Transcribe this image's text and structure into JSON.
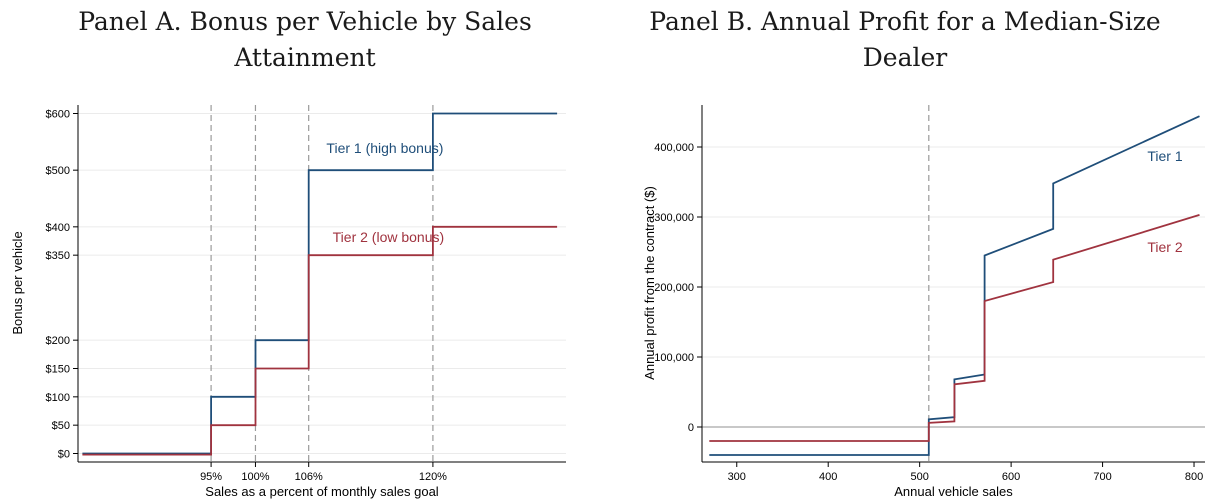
{
  "chart_data": [
    {
      "type": "line",
      "title": "Panel A. Bonus per Vehicle by Sales Attainment",
      "xlabel": "Sales as a percent of monthly sales goal",
      "ylabel": "Bonus per vehicle",
      "xlim": [
        0.8,
        1.35
      ],
      "ylim": [
        -15,
        615
      ],
      "xticks": [
        {
          "value": 0.95,
          "label": "95%"
        },
        {
          "value": 1.0,
          "label": "100%"
        },
        {
          "value": 1.06,
          "label": "106%"
        },
        {
          "value": 1.2,
          "label": "120%"
        }
      ],
      "yticks": [
        {
          "value": 0,
          "label": "$0"
        },
        {
          "value": 50,
          "label": "$50"
        },
        {
          "value": 100,
          "label": "$100"
        },
        {
          "value": 150,
          "label": "$150"
        },
        {
          "value": 200,
          "label": "$200"
        },
        {
          "value": 350,
          "label": "$350"
        },
        {
          "value": 400,
          "label": "$400"
        },
        {
          "value": 500,
          "label": "$500"
        },
        {
          "value": 600,
          "label": "$600"
        }
      ],
      "vlines": [
        0.95,
        1.0,
        1.06,
        1.2
      ],
      "grid": true,
      "series": [
        {
          "name": "Tier 1 (high bonus)",
          "color": "#1f4e79",
          "x": [
            0.805,
            0.95,
            0.95,
            1.0,
            1.0,
            1.06,
            1.06,
            1.2,
            1.2,
            1.34
          ],
          "y": [
            0,
            0,
            100,
            100,
            200,
            200,
            500,
            500,
            600,
            600
          ]
        },
        {
          "name": "Tier 2 (low bonus)",
          "color": "#a0333f",
          "x": [
            0.805,
            0.95,
            0.95,
            1.0,
            1.0,
            1.06,
            1.06,
            1.2,
            1.2,
            1.34
          ],
          "y": [
            -2,
            -2,
            50,
            50,
            150,
            150,
            350,
            350,
            400,
            400
          ]
        }
      ],
      "annotations": [
        {
          "text": "Tier 1 (high bonus)",
          "x": 1.08,
          "y": 530,
          "color": "#1f4e79"
        },
        {
          "text": "Tier 2 (low bonus)",
          "x": 1.087,
          "y": 373,
          "color": "#a0333f"
        }
      ]
    },
    {
      "type": "line",
      "title": "Panel B. Annual Profit for a Median-Size Dealer",
      "xlabel": "Annual vehicle sales",
      "ylabel": "Annual profit from the contract ($)",
      "xlim": [
        262,
        812
      ],
      "ylim": [
        -50000,
        460000
      ],
      "xticks": [
        {
          "value": 300,
          "label": "300"
        },
        {
          "value": 400,
          "label": "400"
        },
        {
          "value": 500,
          "label": "500"
        },
        {
          "value": 600,
          "label": "600"
        },
        {
          "value": 700,
          "label": "700"
        },
        {
          "value": 800,
          "label": "800"
        }
      ],
      "yticks": [
        {
          "value": 0,
          "label": "0"
        },
        {
          "value": 100000,
          "label": "100,000"
        },
        {
          "value": 200000,
          "label": "200,000"
        },
        {
          "value": 300000,
          "label": "300,000"
        },
        {
          "value": 400000,
          "label": "400,000"
        }
      ],
      "vlines": [
        510
      ],
      "hline": 0,
      "grid": true,
      "series": [
        {
          "name": "Tier 1",
          "color": "#1f4e79",
          "x": [
            270,
            510,
            510,
            538,
            538,
            571,
            571,
            646,
            646,
            806
          ],
          "y": [
            -40000,
            -40000,
            11000,
            14000,
            68000,
            75000,
            245000,
            283000,
            348000,
            444000
          ]
        },
        {
          "name": "Tier 2",
          "color": "#a0333f",
          "x": [
            270,
            510,
            510,
            538,
            538,
            571,
            571,
            646,
            646,
            806
          ],
          "y": [
            -20000,
            -20000,
            6000,
            8000,
            61000,
            66000,
            180000,
            207000,
            239000,
            303000
          ]
        }
      ],
      "annotations": [
        {
          "text": "Tier 1",
          "x": 749,
          "y": 380000,
          "color": "#1f4e79"
        },
        {
          "text": "Tier 2",
          "x": 749,
          "y": 250000,
          "color": "#a0333f"
        }
      ]
    }
  ]
}
